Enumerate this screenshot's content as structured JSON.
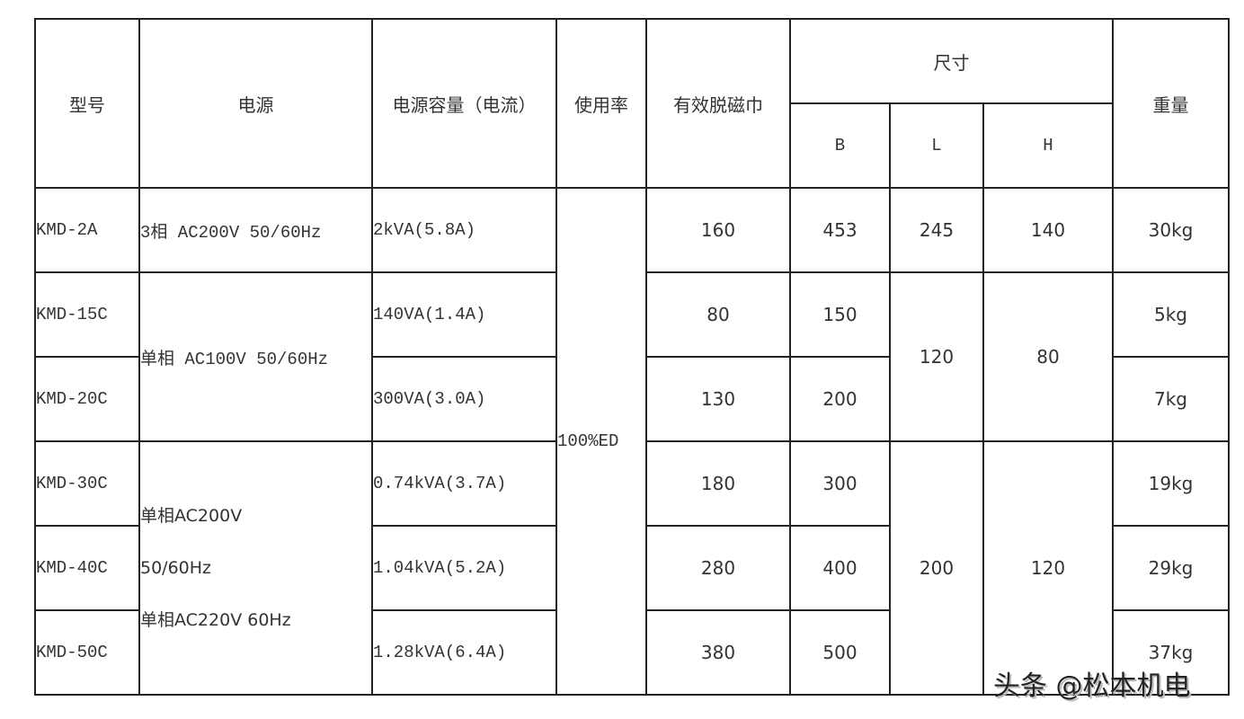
{
  "headers": {
    "model": "型号",
    "power": "电源",
    "capacity": "电源容量（电流）",
    "duty": "使用率",
    "effective": "有效脱磁巾",
    "size": "尺寸",
    "b": "B",
    "l": "L",
    "h": "H",
    "weight": "重量"
  },
  "rows": [
    {
      "model": "KMD-2A",
      "capacity": "2kVA(5.8A)",
      "effective": "160",
      "b": "453",
      "weight": "30kg"
    },
    {
      "model": "KMD-15C",
      "capacity": "140VA(1.4A)",
      "effective": "80",
      "b": "150",
      "weight": "5kg"
    },
    {
      "model": "KMD-20C",
      "capacity": "300VA(3.0A)",
      "effective": "130",
      "b": "200",
      "weight": "7kg"
    },
    {
      "model": "KMD-30C",
      "capacity": "0.74kVA(3.7A)",
      "effective": "180",
      "b": "300",
      "weight": "19kg"
    },
    {
      "model": "KMD-40C",
      "capacity": "1.04kVA(5.2A)",
      "effective": "280",
      "b": "400",
      "weight": "29kg"
    },
    {
      "model": "KMD-50C",
      "capacity": "1.28kVA(6.4A)",
      "effective": "380",
      "b": "500",
      "weight": "37kg"
    }
  ],
  "merged": {
    "power_1": "3相 AC200V 50/60Hz",
    "power_2": "单相 AC100V 50/60Hz",
    "power_3_line1": "单相AC200V",
    "power_3_line2": "50/60Hz",
    "power_3_line3": "单相AC220V 60Hz",
    "duty": "100%ED",
    "l_1": "245",
    "l_2": "120",
    "l_3": "200",
    "h_1": "140",
    "h_2": "80",
    "h_3": "120"
  },
  "watermark": "头条 @松本机电"
}
